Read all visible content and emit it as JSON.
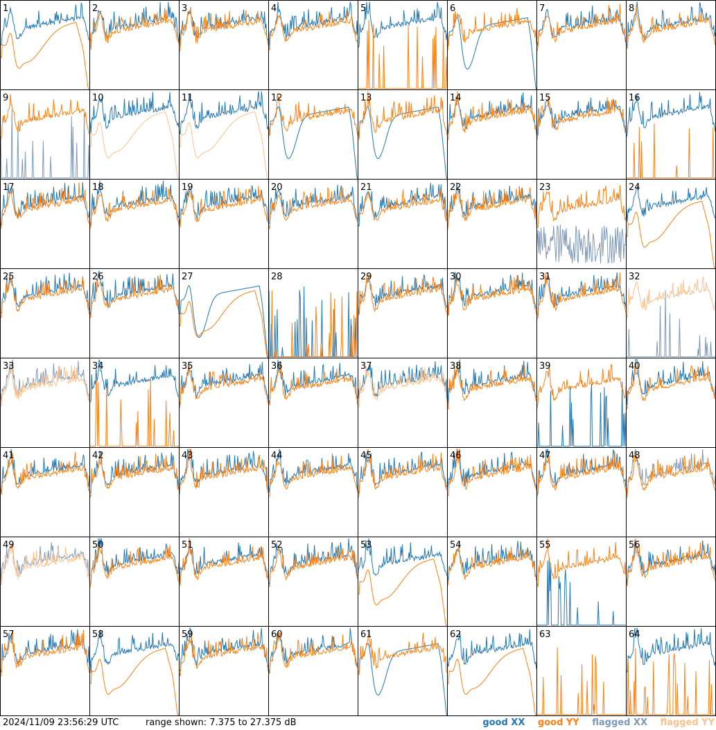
{
  "footer": {
    "timestamp": "2024/11/09 23:56:29 UTC",
    "range_label": "range shown: 7.375 to 27.375 dB"
  },
  "legend": [
    {
      "label": "good XX",
      "color": "#1f77b4"
    },
    {
      "label": "good YY",
      "color": "#ff7f0e"
    },
    {
      "label": "flagged XX",
      "color": "#7f9ab8"
    },
    {
      "label": "flagged YY",
      "color": "#ffc08a"
    }
  ],
  "chart_data": {
    "type": "line",
    "grid": {
      "rows": 8,
      "cols": 8
    },
    "ylim": [
      7.375,
      27.375
    ],
    "yunit": "dB",
    "panel_titles": [
      "1",
      "2",
      "3",
      "4",
      "5",
      "6",
      "7",
      "8",
      "9",
      "10",
      "11",
      "12",
      "13",
      "14",
      "15",
      "16",
      "17",
      "18",
      "19",
      "20",
      "21",
      "22",
      "23",
      "24",
      "25",
      "26",
      "27",
      "28",
      "29",
      "30",
      "31",
      "32",
      "33",
      "34",
      "35",
      "36",
      "37",
      "38",
      "39",
      "40",
      "41",
      "42",
      "43",
      "44",
      "45",
      "46",
      "47",
      "48",
      "49",
      "50",
      "51",
      "52",
      "53",
      "54",
      "55",
      "56",
      "57",
      "58",
      "59",
      "60",
      "61",
      "62",
      "63",
      "64"
    ],
    "panels": [
      {
        "xx": "normal",
        "yy": "sag"
      },
      {
        "xx": "normal",
        "yy": "normal"
      },
      {
        "xx": "normal",
        "yy": "normal"
      },
      {
        "xx": "normal",
        "yy": "normal"
      },
      {
        "xx": "normal",
        "yy": "spikes"
      },
      {
        "xx": "dip",
        "yy": "normal"
      },
      {
        "xx": "normal",
        "yy": "normal"
      },
      {
        "xx": "normal",
        "yy": "normal"
      },
      {
        "xx": "spikes",
        "yy": "normal",
        "flagged": "xx"
      },
      {
        "xx": "normal",
        "yy": "sag",
        "flagged": "yy"
      },
      {
        "xx": "normal",
        "yy": "sag",
        "flagged": "yy"
      },
      {
        "xx": "dip",
        "yy": "normal"
      },
      {
        "xx": "dip",
        "yy": "normal"
      },
      {
        "xx": "normal",
        "yy": "normal"
      },
      {
        "xx": "normal",
        "yy": "normal"
      },
      {
        "xx": "normal",
        "yy": "spikes"
      },
      {
        "xx": "normal",
        "yy": "normal"
      },
      {
        "xx": "normal",
        "yy": "normal"
      },
      {
        "xx": "normal",
        "yy": "normal"
      },
      {
        "xx": "normal",
        "yy": "normal"
      },
      {
        "xx": "normal",
        "yy": "normal"
      },
      {
        "xx": "normal",
        "yy": "normal"
      },
      {
        "xx": "noisy",
        "yy": "normal",
        "flagged": "xx"
      },
      {
        "xx": "normal",
        "yy": "sag"
      },
      {
        "xx": "normal",
        "yy": "normal"
      },
      {
        "xx": "normal",
        "yy": "normal"
      },
      {
        "xx": "dip",
        "yy": "sag"
      },
      {
        "xx": "spikes",
        "yy": "spikes"
      },
      {
        "xx": "normal",
        "yy": "normal"
      },
      {
        "xx": "normal",
        "yy": "normal"
      },
      {
        "xx": "normal",
        "yy": "normal"
      },
      {
        "xx": "spikes",
        "yy": "normal",
        "flagged": "both"
      },
      {
        "xx": "normal",
        "yy": "normal",
        "flagged": "both"
      },
      {
        "xx": "normal",
        "yy": "spikes"
      },
      {
        "xx": "normal",
        "yy": "normal"
      },
      {
        "xx": "normal",
        "yy": "normal"
      },
      {
        "xx": "normal",
        "yy": "normal",
        "flagged": "yy"
      },
      {
        "xx": "normal",
        "yy": "normal"
      },
      {
        "xx": "spikes",
        "yy": "normal"
      },
      {
        "xx": "normal",
        "yy": "normal"
      },
      {
        "xx": "normal",
        "yy": "normal"
      },
      {
        "xx": "normal",
        "yy": "normal"
      },
      {
        "xx": "normal",
        "yy": "normal"
      },
      {
        "xx": "normal",
        "yy": "normal"
      },
      {
        "xx": "normal",
        "yy": "normal"
      },
      {
        "xx": "normal",
        "yy": "normal"
      },
      {
        "xx": "normal",
        "yy": "normal"
      },
      {
        "xx": "normal",
        "yy": "normal",
        "flagged": "xx"
      },
      {
        "xx": "normal",
        "yy": "normal",
        "flagged": "both"
      },
      {
        "xx": "normal",
        "yy": "normal"
      },
      {
        "xx": "normal",
        "yy": "normal"
      },
      {
        "xx": "normal",
        "yy": "normal"
      },
      {
        "xx": "normal",
        "yy": "sag"
      },
      {
        "xx": "normal",
        "yy": "normal"
      },
      {
        "xx": "spikes",
        "yy": "normal"
      },
      {
        "xx": "normal",
        "yy": "normal"
      },
      {
        "xx": "normal",
        "yy": "normal"
      },
      {
        "xx": "normal",
        "yy": "sag"
      },
      {
        "xx": "normal",
        "yy": "normal"
      },
      {
        "xx": "normal",
        "yy": "normal"
      },
      {
        "xx": "dip",
        "yy": "normal"
      },
      {
        "xx": "normal",
        "yy": "sag"
      },
      {
        "xx": "none",
        "yy": "spikes"
      },
      {
        "xx": "normal",
        "yy": "spikes"
      }
    ]
  }
}
